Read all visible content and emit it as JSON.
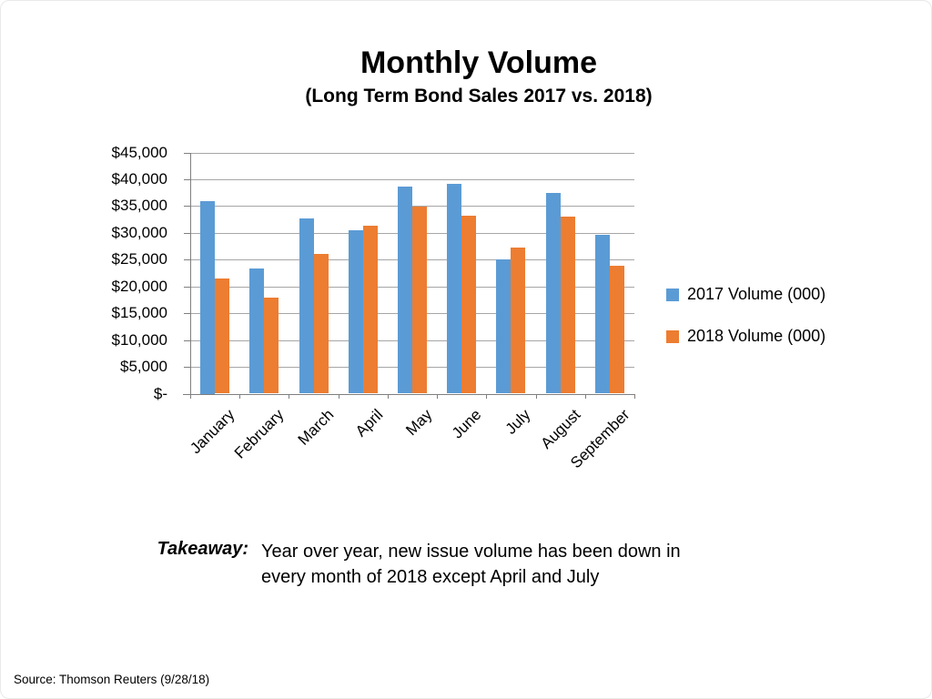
{
  "slide": {
    "title": "Monthly Volume",
    "subtitle": "(Long Term Bond Sales 2017 vs. 2018)",
    "takeaway_label": "Takeaway:",
    "takeaway_line1": "Year over year, new issue volume has been down in",
    "takeaway_line2": "every month of 2018 except April and July",
    "source": "Source: Thomson Reuters (9/28/18)"
  },
  "chart_data": {
    "type": "bar",
    "title": "Monthly Volume",
    "subtitle": "(Long Term Bond Sales 2017 vs. 2018)",
    "categories": [
      "January",
      "February",
      "March",
      "April",
      "May",
      "June",
      "July",
      "August",
      "September"
    ],
    "series": [
      {
        "name": "2017 Volume (000)",
        "color": "#5B9BD5",
        "values": [
          36000,
          23400,
          32700,
          30500,
          38700,
          39200,
          25100,
          37400,
          29600
        ]
      },
      {
        "name": "2018 Volume (000)",
        "color": "#ED7D31",
        "values": [
          21400,
          17900,
          26000,
          31300,
          34900,
          33200,
          27200,
          33000,
          23900
        ]
      }
    ],
    "ylim": [
      0,
      45000
    ],
    "ytick_interval": 5000,
    "ytick_labels": [
      "$-",
      "$5,000",
      "$10,000",
      "$15,000",
      "$20,000",
      "$25,000",
      "$30,000",
      "$35,000",
      "$40,000",
      "$45,000"
    ],
    "grid": true,
    "legend_position": "right",
    "gridline_color": "#A6A6A6",
    "axis_color": "#7F7F7F"
  }
}
